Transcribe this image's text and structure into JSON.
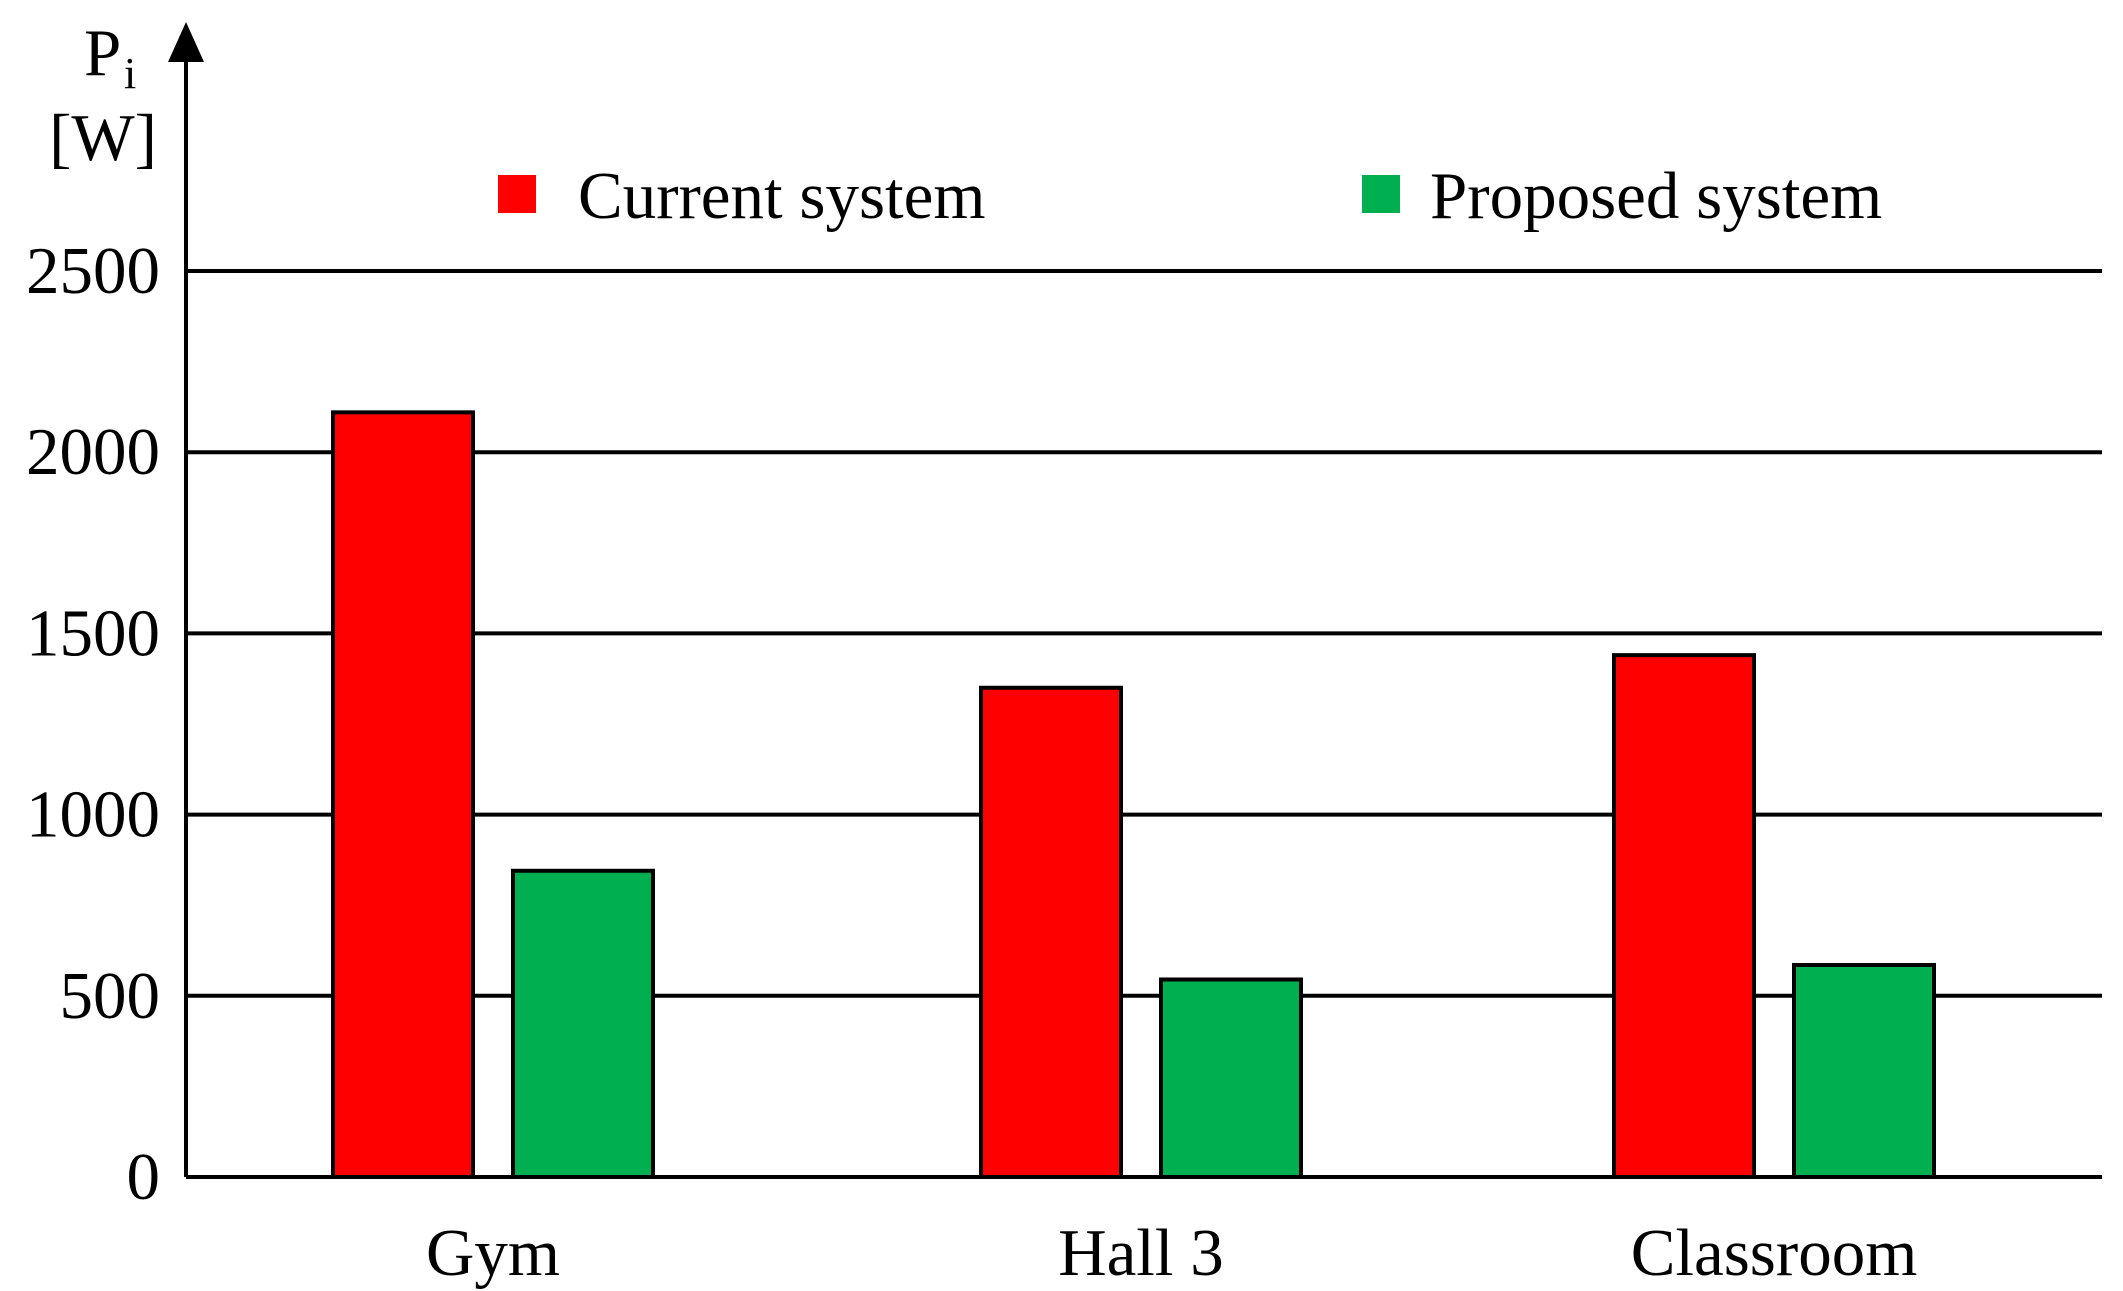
{
  "chart_data": {
    "type": "bar",
    "title": "",
    "xlabel": "",
    "ylabel": {
      "symbol": "P",
      "subscript": "i",
      "unit": "[W]"
    },
    "categories": [
      "Gym",
      "Hall 3",
      "Classroom"
    ],
    "series": [
      {
        "name": "Current system",
        "color": "#ff0000",
        "values": [
          2110,
          1350,
          1440
        ]
      },
      {
        "name": "Proposed system",
        "color": "#00b050",
        "values": [
          845,
          545,
          585
        ]
      }
    ],
    "ylim": [
      0,
      2500
    ],
    "yticks": [
      0,
      500,
      1000,
      1500,
      2000,
      2500
    ],
    "grid": true,
    "legend_position": "top"
  }
}
